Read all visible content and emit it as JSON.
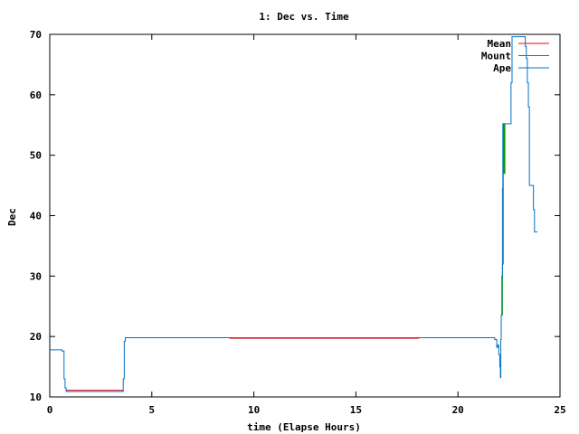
{
  "chart_data": {
    "type": "line",
    "title": "1: Dec vs. Time",
    "xlabel": "time (Elapse Hours)",
    "ylabel": "Dec",
    "xlim": [
      0,
      25
    ],
    "ylim": [
      10,
      70
    ],
    "xticks": [
      0,
      5,
      10,
      15,
      20,
      25
    ],
    "yticks": [
      10,
      20,
      30,
      40,
      50,
      60,
      70
    ],
    "grid": false,
    "legend_position": "top-right",
    "series": [
      {
        "name": "Mean",
        "color": "#ff0000",
        "segments": [
          [
            [
              0.8,
              11.1
            ],
            [
              3.6,
              11.1
            ]
          ],
          [
            [
              8.8,
              19.7
            ],
            [
              18.1,
              19.7
            ]
          ]
        ]
      },
      {
        "name": "Mount",
        "color": "#00a000",
        "segments": [
          [
            [
              22.18,
              23.5
            ],
            [
              22.18,
              32.0
            ],
            [
              22.22,
              32.0
            ],
            [
              22.22,
              55.2
            ],
            [
              22.26,
              55.2
            ],
            [
              22.26,
              47.0
            ],
            [
              22.3,
              47.0
            ],
            [
              22.3,
              55.2
            ]
          ]
        ]
      },
      {
        "name": "Ape",
        "color": "#0072c6",
        "segments": [
          [
            [
              0,
              17.8
            ],
            [
              0.6,
              17.8
            ],
            [
              0.6,
              17.6
            ],
            [
              0.7,
              17.6
            ],
            [
              0.7,
              13.0
            ],
            [
              0.75,
              13.0
            ],
            [
              0.75,
              11.5
            ],
            [
              0.8,
              11.5
            ],
            [
              0.8,
              10.9
            ],
            [
              3.6,
              10.9
            ],
            [
              3.6,
              13.0
            ],
            [
              3.65,
              13.0
            ],
            [
              3.65,
              19.2
            ],
            [
              3.7,
              19.2
            ],
            [
              3.7,
              19.8
            ],
            [
              21.8,
              19.8
            ],
            [
              21.8,
              19.5
            ],
            [
              21.9,
              19.5
            ],
            [
              21.9,
              18.2
            ],
            [
              21.95,
              18.2
            ],
            [
              21.95,
              18.6
            ],
            [
              22.0,
              18.6
            ],
            [
              22.0,
              17.0
            ],
            [
              22.05,
              17.0
            ],
            [
              22.05,
              15.0
            ],
            [
              22.08,
              15.0
            ],
            [
              22.08,
              13.2
            ],
            [
              22.1,
              13.2
            ],
            [
              22.1,
              19.5
            ],
            [
              22.12,
              19.5
            ],
            [
              22.12,
              23.5
            ],
            [
              22.15,
              23.5
            ],
            [
              22.15,
              30.0
            ],
            [
              22.18,
              30.0
            ],
            [
              22.18,
              44.5
            ],
            [
              22.2,
              44.5
            ],
            [
              22.2,
              55.2
            ],
            [
              22.6,
              55.2
            ],
            [
              22.6,
              62.0
            ],
            [
              22.65,
              62.0
            ],
            [
              22.65,
              69.6
            ],
            [
              23.3,
              69.6
            ],
            [
              23.3,
              68.0
            ],
            [
              23.35,
              68.0
            ],
            [
              23.35,
              66.0
            ],
            [
              23.4,
              66.0
            ],
            [
              23.4,
              62.0
            ],
            [
              23.45,
              62.0
            ],
            [
              23.45,
              58.0
            ],
            [
              23.5,
              58.0
            ],
            [
              23.5,
              45.0
            ],
            [
              23.7,
              45.0
            ],
            [
              23.7,
              41.0
            ],
            [
              23.75,
              41.0
            ],
            [
              23.75,
              37.3
            ],
            [
              23.9,
              37.3
            ]
          ]
        ]
      }
    ]
  }
}
